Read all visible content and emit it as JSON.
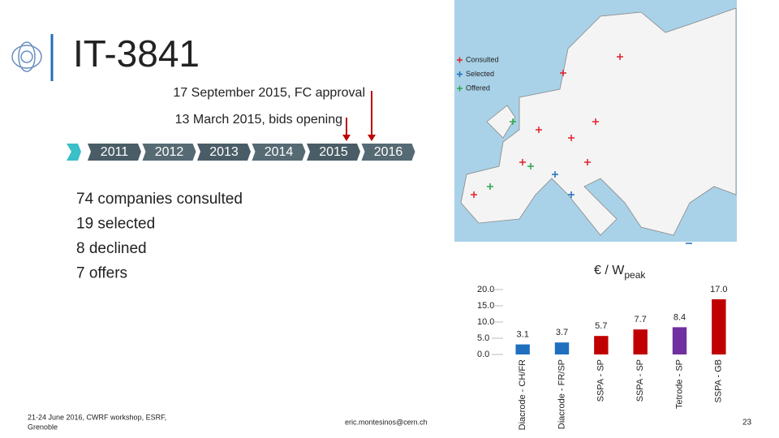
{
  "header": {
    "title": "IT-3841"
  },
  "timeline": {
    "years": [
      "2011",
      "2012",
      "2013",
      "2014",
      "2015",
      "2016"
    ],
    "events": [
      "17 September 2015, FC approval",
      "13 March 2015, bids opening"
    ]
  },
  "bullets": [
    "74 companies consulted",
    "19 selected",
    "8 declined",
    "7 offers"
  ],
  "map_legend": [
    {
      "label": "Consulted",
      "color": "#e0202a"
    },
    {
      "label": "Selected",
      "color": "#1f6fbf"
    },
    {
      "label": "Offered",
      "color": "#2aa84a"
    }
  ],
  "chart_data": {
    "type": "bar",
    "y_label": {
      "text": "€ / W",
      "subscript": "peak"
    },
    "categories": [
      "Diacrode - CH/FR",
      "Diacrode - FR/SP",
      "SSPA - SP",
      "SSPA - SP",
      "Tetrode - SP",
      "SSPA - GB"
    ],
    "values": [
      3.1,
      3.7,
      5.7,
      7.7,
      8.4,
      17.0
    ],
    "value_labels": [
      "3.1",
      "3.7",
      "5.7",
      "7.7",
      "8.4",
      "17.0"
    ],
    "colors": [
      "#1f6fbf",
      "#1f6fbf",
      "#c00000",
      "#c00000",
      "#7030a0",
      "#c00000"
    ],
    "ylim": [
      0,
      20
    ],
    "yticks": [
      {
        "value": 0,
        "label": "0.0"
      },
      {
        "value": 5,
        "label": "5.0"
      },
      {
        "value": 10,
        "label": "10.0"
      },
      {
        "value": 15,
        "label": "15.0"
      },
      {
        "value": 20,
        "label": "20.0"
      }
    ]
  },
  "footer": {
    "event": "21-24 June 2016, CWRF workshop, ESRF,",
    "place": "Grenoble",
    "email": "eric.montesinos@cern.ch",
    "page": "23"
  }
}
